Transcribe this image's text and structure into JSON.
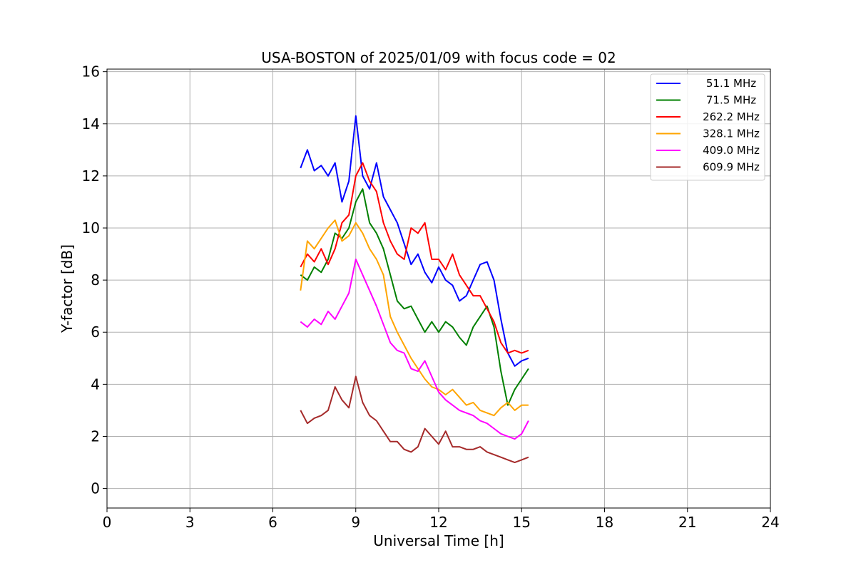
{
  "chart_data": {
    "type": "line",
    "title": "USA-BOSTON of 2025/01/09 with focus code = 02",
    "xlabel": "Universal Time [h]",
    "ylabel": "Y-factor [dB]",
    "xlim": [
      0,
      24
    ],
    "ylim": [
      -0.75,
      16.1
    ],
    "xticks": [
      0,
      3,
      6,
      9,
      12,
      15,
      18,
      21,
      24
    ],
    "yticks": [
      0,
      2,
      4,
      6,
      8,
      10,
      12,
      14,
      16
    ],
    "grid": true,
    "legend_position": "top-right",
    "series": [
      {
        "name": "51.1 MHz",
        "color": "#0000ff",
        "x": [
          7.0,
          7.25,
          7.5,
          7.75,
          8.0,
          8.25,
          8.5,
          8.75,
          9.0,
          9.25,
          9.5,
          9.75,
          10.0,
          10.25,
          10.5,
          10.75,
          11.0,
          11.25,
          11.5,
          11.75,
          12.0,
          12.25,
          12.5,
          12.75,
          13.0,
          13.25,
          13.5,
          13.75,
          14.0,
          14.25,
          14.5,
          14.75,
          15.0,
          15.25
        ],
        "y": [
          12.3,
          13.0,
          12.2,
          12.4,
          12.0,
          12.5,
          11.0,
          11.8,
          14.3,
          12.0,
          11.5,
          12.5,
          11.2,
          10.7,
          10.2,
          9.4,
          8.6,
          9.0,
          8.3,
          7.9,
          8.5,
          8.0,
          7.8,
          7.2,
          7.4,
          8.0,
          8.6,
          8.7,
          8.0,
          6.5,
          5.2,
          4.7,
          4.9,
          5.0
        ]
      },
      {
        "name": "71.5 MHz",
        "color": "#008000",
        "x": [
          7.0,
          7.25,
          7.5,
          7.75,
          8.0,
          8.25,
          8.5,
          8.75,
          9.0,
          9.25,
          9.5,
          9.75,
          10.0,
          10.25,
          10.5,
          10.75,
          11.0,
          11.25,
          11.5,
          11.75,
          12.0,
          12.25,
          12.5,
          12.75,
          13.0,
          13.25,
          13.5,
          13.75,
          14.0,
          14.25,
          14.5,
          14.75,
          15.0,
          15.25
        ],
        "y": [
          8.2,
          8.0,
          8.5,
          8.3,
          8.8,
          9.8,
          9.6,
          10.0,
          11.0,
          11.5,
          10.2,
          9.8,
          9.2,
          8.2,
          7.2,
          6.9,
          7.0,
          6.5,
          6.0,
          6.4,
          6.0,
          6.4,
          6.2,
          5.8,
          5.5,
          6.2,
          6.6,
          7.0,
          6.2,
          4.5,
          3.2,
          3.8,
          4.2,
          4.6
        ]
      },
      {
        "name": "262.2 MHz",
        "color": "#ff0000",
        "x": [
          7.0,
          7.25,
          7.5,
          7.75,
          8.0,
          8.25,
          8.5,
          8.75,
          9.0,
          9.25,
          9.5,
          9.75,
          10.0,
          10.25,
          10.5,
          10.75,
          11.0,
          11.25,
          11.5,
          11.75,
          12.0,
          12.25,
          12.5,
          12.75,
          13.0,
          13.25,
          13.5,
          13.75,
          14.0,
          14.25,
          14.5,
          14.75,
          15.0,
          15.25
        ],
        "y": [
          8.5,
          9.0,
          8.7,
          9.2,
          8.6,
          9.2,
          10.2,
          10.5,
          12.0,
          12.5,
          11.8,
          11.4,
          10.2,
          9.5,
          9.0,
          8.8,
          10.0,
          9.8,
          10.2,
          8.8,
          8.8,
          8.4,
          9.0,
          8.2,
          7.8,
          7.4,
          7.4,
          6.9,
          6.4,
          5.6,
          5.2,
          5.3,
          5.2,
          5.3
        ]
      },
      {
        "name": "328.1 MHz",
        "color": "#ffa500",
        "x": [
          7.0,
          7.25,
          7.5,
          7.75,
          8.0,
          8.25,
          8.5,
          8.75,
          9.0,
          9.25,
          9.5,
          9.75,
          10.0,
          10.25,
          10.5,
          10.75,
          11.0,
          11.25,
          11.5,
          11.75,
          12.0,
          12.25,
          12.5,
          12.75,
          13.0,
          13.25,
          13.5,
          13.75,
          14.0,
          14.25,
          14.5,
          14.75,
          15.0,
          15.25
        ],
        "y": [
          7.6,
          9.5,
          9.2,
          9.6,
          10.0,
          10.3,
          9.5,
          9.7,
          10.2,
          9.8,
          9.2,
          8.8,
          8.2,
          6.6,
          6.0,
          5.5,
          5.0,
          4.6,
          4.2,
          3.9,
          3.8,
          3.6,
          3.8,
          3.5,
          3.2,
          3.3,
          3.0,
          2.9,
          2.8,
          3.1,
          3.3,
          3.0,
          3.2,
          3.2
        ]
      },
      {
        "name": "409.0 MHz",
        "color": "#ff00ff",
        "x": [
          7.0,
          7.25,
          7.5,
          7.75,
          8.0,
          8.25,
          8.5,
          8.75,
          9.0,
          9.25,
          9.5,
          9.75,
          10.0,
          10.25,
          10.5,
          10.75,
          11.0,
          11.25,
          11.5,
          11.75,
          12.0,
          12.25,
          12.5,
          12.75,
          13.0,
          13.25,
          13.5,
          13.75,
          14.0,
          14.25,
          14.5,
          14.75,
          15.0,
          15.25
        ],
        "y": [
          6.4,
          6.2,
          6.5,
          6.3,
          6.8,
          6.5,
          7.0,
          7.5,
          8.8,
          8.2,
          7.6,
          7.0,
          6.3,
          5.6,
          5.3,
          5.2,
          4.6,
          4.5,
          4.9,
          4.3,
          3.7,
          3.4,
          3.2,
          3.0,
          2.9,
          2.8,
          2.6,
          2.5,
          2.3,
          2.1,
          2.0,
          1.9,
          2.1,
          2.6
        ]
      },
      {
        "name": "609.9 MHz",
        "color": "#a52a2a",
        "x": [
          7.0,
          7.25,
          7.5,
          7.75,
          8.0,
          8.25,
          8.5,
          8.75,
          9.0,
          9.25,
          9.5,
          9.75,
          10.0,
          10.25,
          10.5,
          10.75,
          11.0,
          11.25,
          11.5,
          11.75,
          12.0,
          12.25,
          12.5,
          12.75,
          13.0,
          13.25,
          13.5,
          13.75,
          14.0,
          14.25,
          14.5,
          14.75,
          15.0,
          15.25
        ],
        "y": [
          3.0,
          2.5,
          2.7,
          2.8,
          3.0,
          3.9,
          3.4,
          3.1,
          4.3,
          3.3,
          2.8,
          2.6,
          2.2,
          1.8,
          1.8,
          1.5,
          1.4,
          1.6,
          2.3,
          2.0,
          1.7,
          2.2,
          1.6,
          1.6,
          1.5,
          1.5,
          1.6,
          1.4,
          1.3,
          1.2,
          1.1,
          1.0,
          1.1,
          1.2
        ]
      }
    ]
  }
}
